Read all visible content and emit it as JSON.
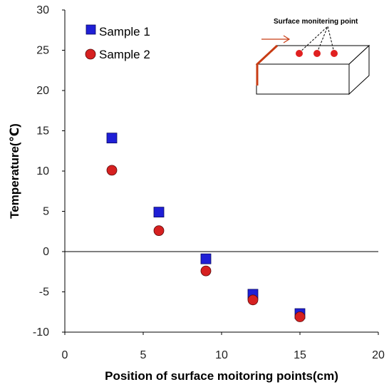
{
  "chart_data": {
    "type": "scatter",
    "xlabel": "Position of surface moitoring points(cm)",
    "ylabel": "Temperature(℃)",
    "xlim": [
      0,
      20
    ],
    "ylim": [
      -10,
      30
    ],
    "xticks": [
      "0",
      "5",
      "10",
      "15",
      "20"
    ],
    "yticks": [
      "30",
      "25",
      "20",
      "15",
      "10",
      "5",
      "0",
      "-5",
      "-10"
    ],
    "grid": false,
    "legend_position": "top-left",
    "series": [
      {
        "name": "Sample 1",
        "marker": "square",
        "color": "#1f1fd6",
        "x": [
          3,
          6,
          9,
          12,
          15
        ],
        "y": [
          14.1,
          4.9,
          -0.9,
          -5.3,
          -7.7
        ]
      },
      {
        "name": "Sample 2",
        "marker": "circle",
        "color": "#d62020",
        "x": [
          3,
          6,
          9,
          12,
          15
        ],
        "y": [
          10.1,
          2.6,
          -2.4,
          -6.0,
          -8.1
        ]
      }
    ],
    "inset": {
      "label": "Surface monitering point",
      "point_color": "#e02020",
      "heater_color": "#c83c14"
    }
  }
}
